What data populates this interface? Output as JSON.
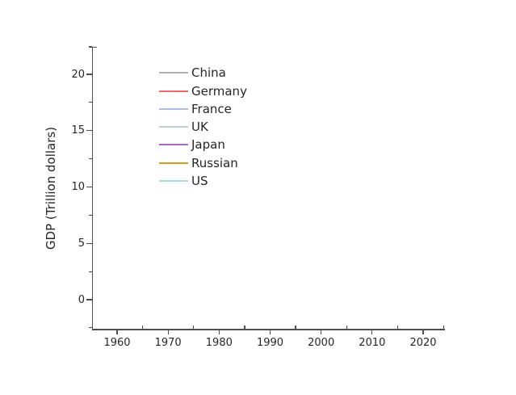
{
  "figure": {
    "background_color": "#ffffff",
    "axis_color": "#4d4d4d",
    "text_color": "#262626"
  },
  "chart_data": {
    "type": "line",
    "title": "",
    "xlabel": "",
    "ylabel": "GDP (Trillion dollars)",
    "xlim": [
      1955,
      2025
    ],
    "ylim": [
      -2.5,
      22.5
    ],
    "x_major_ticks": [
      1960,
      1970,
      1980,
      1990,
      2000,
      2010,
      2020
    ],
    "x_tick_labels": [
      "1960",
      "1970",
      "1980",
      "1990",
      "2000",
      "2010",
      "2020"
    ],
    "x_minor_ticks": [
      1965,
      1975,
      1985,
      1995,
      2005,
      2015
    ],
    "y_major_ticks": [
      0,
      5,
      10,
      15,
      20
    ],
    "y_tick_labels": [
      "0",
      "5",
      "10",
      "15",
      "20"
    ],
    "y_minor_ticks": [
      -2.5,
      2.5,
      7.5,
      12.5,
      17.5,
      22.5
    ],
    "grid": false,
    "legend_position": "upper-left-inside",
    "series": [
      {
        "name": "China",
        "color": "#b3b3b3",
        "values": []
      },
      {
        "name": "Germany",
        "color": "#f16b6b",
        "values": []
      },
      {
        "name": "France",
        "color": "#a9bce2",
        "values": []
      },
      {
        "name": "UK",
        "color": "#bdd5d1",
        "values": []
      },
      {
        "name": "Japan",
        "color": "#a869c9",
        "values": []
      },
      {
        "name": "Russian",
        "color": "#d29e19",
        "values": []
      },
      {
        "name": "US",
        "color": "#abd8da",
        "values": []
      }
    ]
  }
}
